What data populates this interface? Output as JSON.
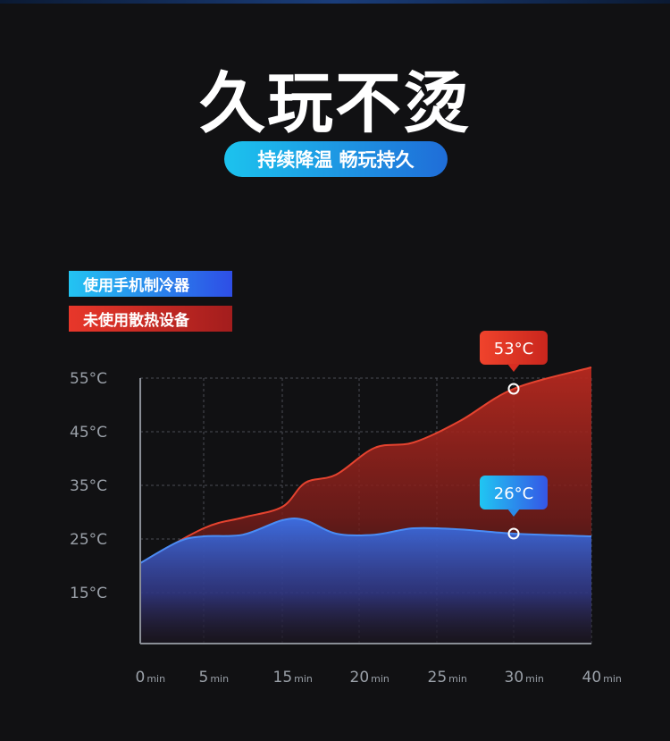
{
  "header": {
    "title": "久玩不烫",
    "subtitle": "持续降温 畅玩持久"
  },
  "colors": {
    "background": "#111113",
    "accent_blue": "#2e6fe0",
    "accent_cyan": "#1cc3ee",
    "accent_red": "#e8372a"
  },
  "chart_data": {
    "type": "area",
    "legend_placement": "top-left",
    "grid": true,
    "ylim": [
      15,
      55
    ],
    "y_ticks": [
      "15°C",
      "25°C",
      "35°C",
      "45°C",
      "55°C"
    ],
    "x_ticks": [
      {
        "num": "0",
        "unit": "min"
      },
      {
        "num": "5",
        "unit": "min"
      },
      {
        "num": "15",
        "unit": "min"
      },
      {
        "num": "20",
        "unit": "min"
      },
      {
        "num": "25",
        "unit": "min"
      },
      {
        "num": "30",
        "unit": "min"
      },
      {
        "num": "40",
        "unit": "min"
      }
    ],
    "series": [
      {
        "name": "未使用散热设备",
        "color": "#e8372a",
        "points": [
          [
            0,
            20.5
          ],
          [
            1,
            27
          ],
          [
            1.5,
            29
          ],
          [
            2,
            31
          ],
          [
            2.3,
            35.5
          ],
          [
            2.7,
            37
          ],
          [
            3.2,
            42
          ],
          [
            3.7,
            43
          ],
          [
            4.3,
            47
          ],
          [
            5,
            53
          ],
          [
            6,
            57
          ]
        ]
      },
      {
        "name": "使用手机制冷器",
        "color": "#3a7ff0",
        "points": [
          [
            0,
            20.5
          ],
          [
            0.6,
            24.5
          ],
          [
            1,
            25.5
          ],
          [
            1.5,
            25.8
          ],
          [
            2,
            28.5
          ],
          [
            2.3,
            28.5
          ],
          [
            2.7,
            26
          ],
          [
            3.2,
            25.8
          ],
          [
            3.7,
            27
          ],
          [
            4.3,
            26.8
          ],
          [
            5,
            26
          ],
          [
            6,
            25.5
          ]
        ]
      }
    ],
    "callouts": [
      {
        "label": "53°C",
        "series": 0,
        "at": [
          5,
          53
        ]
      },
      {
        "label": "26°C",
        "series": 1,
        "at": [
          5,
          26
        ]
      }
    ]
  }
}
